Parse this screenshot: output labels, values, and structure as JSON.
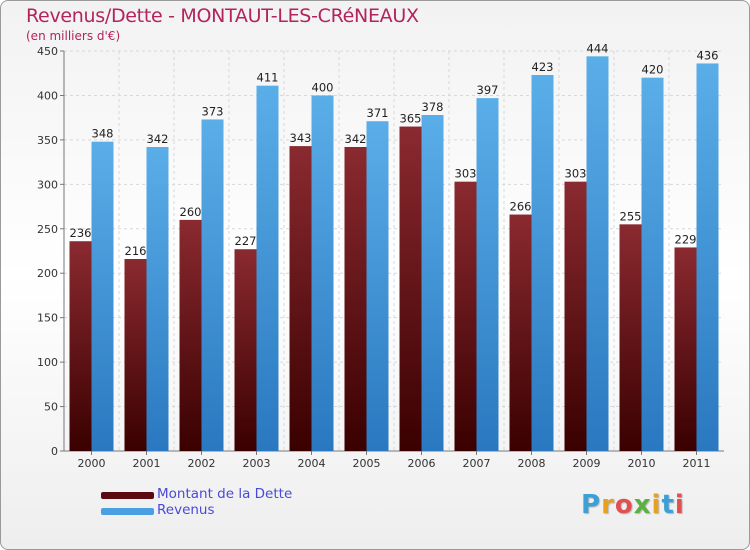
{
  "title": "Revenus/Dette - MONTAUT-LES-CRéNEAUX",
  "subtitle": "(en milliers d'€)",
  "colors": {
    "title": "#b3245c",
    "series": [
      "#7a1a22",
      "#4a9fe0"
    ],
    "legend_text": "#4a4ad8"
  },
  "chart_data": {
    "type": "bar",
    "categories": [
      "2000",
      "2001",
      "2002",
      "2003",
      "2004",
      "2005",
      "2006",
      "2007",
      "2008",
      "2009",
      "2010",
      "2011"
    ],
    "series": [
      {
        "name": "Montant de la Dette",
        "values": [
          236,
          216,
          260,
          227,
          343,
          342,
          365,
          303,
          266,
          303,
          255,
          229
        ]
      },
      {
        "name": "Revenus",
        "values": [
          348,
          342,
          373,
          411,
          400,
          371,
          378,
          397,
          423,
          444,
          420,
          436
        ]
      }
    ],
    "ylim": [
      0,
      450
    ],
    "yticks": [
      "0",
      "50",
      "100",
      "150",
      "200",
      "250",
      "300",
      "350",
      "400",
      "450"
    ],
    "grid": true,
    "legend_position": "bottom-left"
  },
  "logo": {
    "text": "Proxiti",
    "letter_colors": [
      "#3aa0d8",
      "#e8a020",
      "#e05050",
      "#5ab040",
      "#e8a020",
      "#3aa0d8",
      "#e05050"
    ]
  }
}
